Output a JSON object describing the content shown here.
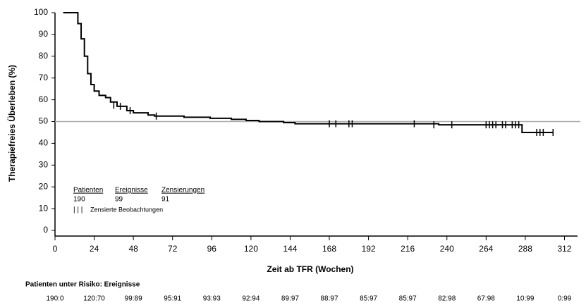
{
  "chart_data": {
    "type": "line",
    "step": true,
    "y_label": "Therapiefreies Überleben (%)",
    "x_label": "Zeit ab TFR (Wochen)",
    "xlim": [
      0,
      320
    ],
    "ylim": [
      0,
      100
    ],
    "xticks": [
      0,
      24,
      48,
      72,
      96,
      120,
      144,
      168,
      192,
      216,
      240,
      264,
      288,
      312
    ],
    "yticks": [
      0,
      10,
      20,
      30,
      40,
      50,
      60,
      70,
      80,
      90,
      100
    ],
    "reference_line": 50,
    "reference_color": "#aaaaaa",
    "series": [
      {
        "color": "#000000",
        "x": [
          5,
          12,
          14,
          16,
          18,
          20,
          22,
          24,
          27,
          31,
          34,
          38,
          44,
          48,
          57,
          61,
          79,
          95,
          108,
          117,
          125,
          140,
          147,
          235,
          286,
          305
        ],
        "values": [
          100,
          100,
          95,
          88,
          80,
          72,
          67,
          64,
          62,
          61,
          59,
          57,
          55,
          54,
          53,
          52.5,
          52,
          51.5,
          51,
          50.5,
          50,
          49.5,
          49,
          48.5,
          45,
          45
        ]
      }
    ],
    "censored": {
      "x": [
        36,
        40,
        46,
        62,
        168,
        172,
        180,
        182,
        220,
        232,
        243,
        264,
        266,
        268,
        270,
        274,
        276,
        280,
        282,
        284,
        295,
        297,
        299,
        305
      ],
      "y": [
        57.5,
        57,
        55,
        52.5,
        49,
        49,
        49,
        49,
        49,
        48.5,
        48.5,
        48.5,
        48.5,
        48.5,
        48.5,
        48.5,
        48.5,
        48.5,
        48.5,
        48.5,
        45,
        45,
        45,
        45
      ]
    },
    "legend": {
      "headers": [
        "Patienten",
        "Ereignisse",
        "Zensierungen"
      ],
      "values": [
        190,
        99,
        91
      ],
      "censor_symbol": "| | |",
      "censor_label": "Zensierte Beobachtungen"
    },
    "risk_title": "Patienten unter Risiko: Ereignisse",
    "risk_table": [
      "190:0",
      "120:70",
      "99:89",
      "95:91",
      "93:93",
      "92:94",
      "89:97",
      "88:97",
      "85:97",
      "85:97",
      "82:98",
      "67:98",
      "10:99",
      "0:99"
    ]
  }
}
